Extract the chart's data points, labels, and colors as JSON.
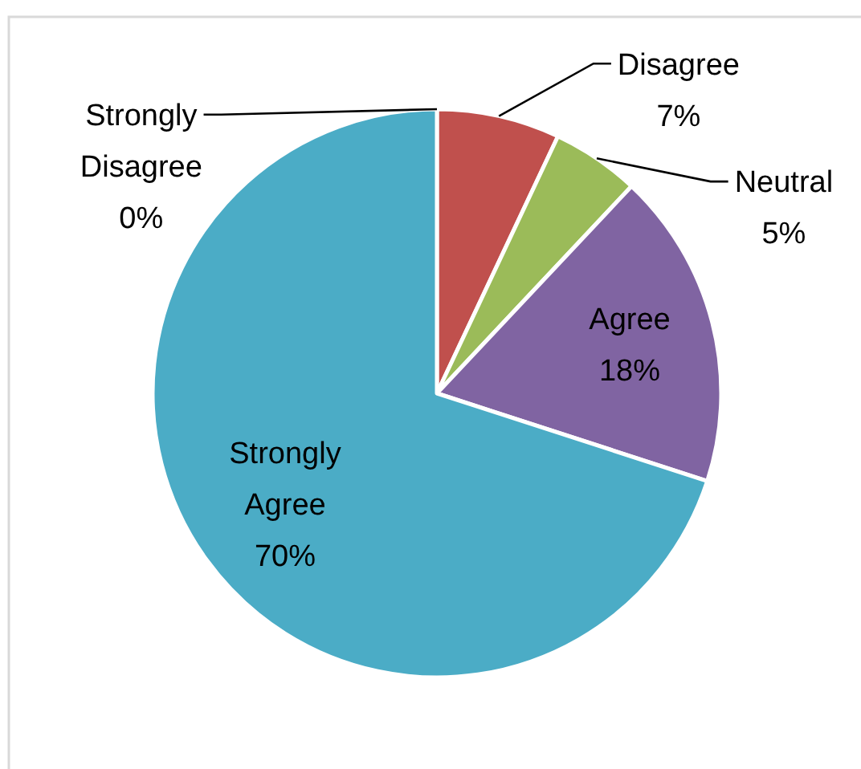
{
  "chart_data": {
    "type": "pie",
    "categories": [
      "Strongly Disagree",
      "Disagree",
      "Neutral",
      "Agree",
      "Strongly Agree"
    ],
    "values": [
      0,
      7,
      5,
      18,
      70
    ],
    "colors": [
      "#4f81bd",
      "#c0504d",
      "#9bbb59",
      "#8064a2",
      "#4bacc6"
    ],
    "value_labels": [
      "0%",
      "7%",
      "5%",
      "18%",
      "70%"
    ]
  }
}
